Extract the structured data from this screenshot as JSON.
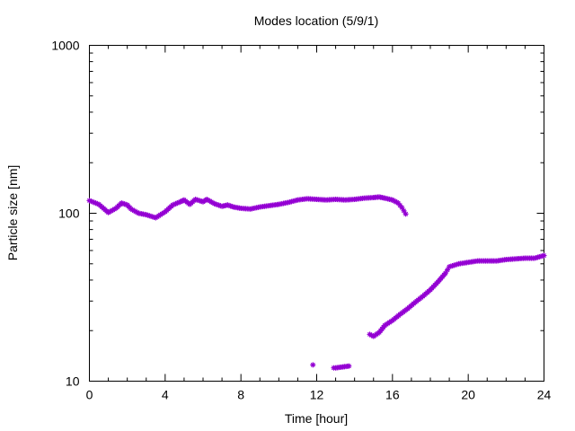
{
  "chart_data": {
    "type": "scatter",
    "title": "Modes location (5/9/1)",
    "xlabel": "Time [hour]",
    "ylabel": "Particle size [nm]",
    "xlim": [
      0,
      24
    ],
    "ylim": [
      10,
      1000
    ],
    "yscale": "log",
    "xticks": [
      0,
      4,
      8,
      12,
      16,
      20,
      24
    ],
    "xtick_labels": [
      "0",
      "4",
      "8",
      "12",
      "16",
      "20",
      "24"
    ],
    "yticks": [
      10,
      100,
      1000
    ],
    "ytick_labels": [
      "10",
      "100",
      "1000"
    ],
    "grid": false,
    "legend": "none",
    "marker_color": "#9400d3",
    "series": [
      {
        "x": [
          0,
          0.5,
          1,
          1.4,
          1.7,
          2,
          2.2,
          2.6,
          3,
          3.5,
          4,
          4.4,
          4.8,
          5,
          5.3,
          5.6,
          6,
          6.2,
          6.6,
          7,
          7.3,
          7.6,
          8,
          8.5,
          9,
          9.5,
          10,
          10.5,
          11,
          11.5,
          12,
          12.5,
          13,
          13.5,
          14,
          14.5,
          15,
          15.3,
          15.6,
          16,
          16.3,
          16.5,
          16.7
        ],
        "y": [
          119,
          113,
          101,
          107,
          115,
          112,
          106,
          100,
          98,
          94,
          102,
          112,
          117,
          120,
          113,
          121,
          117,
          121,
          114,
          110,
          112,
          109,
          107,
          106,
          109,
          111,
          113,
          116,
          120,
          122,
          121,
          120,
          121,
          120,
          121,
          123,
          124,
          125,
          123,
          120,
          115,
          108,
          99
        ]
      },
      {
        "x": [
          11.8,
          12.9,
          13,
          13.7
        ],
        "y": [
          12.5,
          12,
          12,
          12.3
        ]
      },
      {
        "x": [
          14.8,
          15,
          15.3,
          15.6,
          16,
          16.4,
          16.8,
          17.2,
          17.6,
          18,
          18.4,
          18.8,
          19,
          19.5,
          20,
          20.5,
          21,
          21.5,
          22,
          22.5,
          23,
          23.5,
          24
        ],
        "y": [
          19,
          18.5,
          19.5,
          21.5,
          23,
          25,
          27,
          29.5,
          32,
          35,
          39,
          44,
          48,
          50,
          51,
          52,
          52,
          52,
          53,
          53.5,
          54,
          54,
          56
        ]
      }
    ]
  }
}
